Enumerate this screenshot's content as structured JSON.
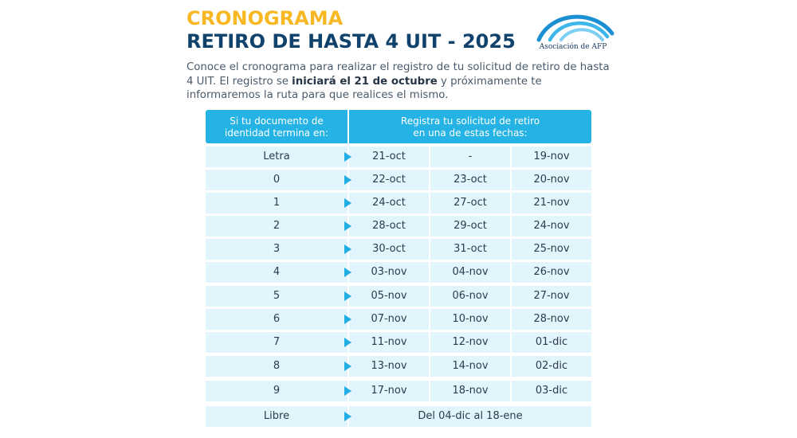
{
  "header": {
    "title_line1": "CRONOGRAMA",
    "title_line2": "RETIRO DE HASTA 4 UIT - 2025",
    "logo_text": "Asociación de AFP",
    "colors": {
      "accent": "#f7b824",
      "navy": "#11426c",
      "table_header": "#25b3e6",
      "table_cell": "#e2f4fc"
    }
  },
  "intro": {
    "part1": "Conoce el cronograma para realizar el registro de tu solicitud de retiro de hasta 4 UIT. El registro se ",
    "bold": "iniciará el 21 de octubre",
    "part2": " y próximamente te informaremos la ruta para que realices el mismo."
  },
  "table": {
    "header_left_line1": "Si tu documento de",
    "header_left_line2": "identidad termina en:",
    "header_right_line1": "Registra tu solicitud de retiro",
    "header_right_line2": "en una de estas fechas:",
    "rows": [
      {
        "digit": "Letra",
        "d1": "21-oct",
        "d2": "-",
        "d3": "19-nov"
      },
      {
        "digit": "0",
        "d1": "22-oct",
        "d2": "23-oct",
        "d3": "20-nov"
      },
      {
        "digit": "1",
        "d1": "24-oct",
        "d2": "27-oct",
        "d3": "21-nov"
      },
      {
        "digit": "2",
        "d1": "28-oct",
        "d2": "29-oct",
        "d3": "24-nov"
      },
      {
        "digit": "3",
        "d1": "30-oct",
        "d2": "31-oct",
        "d3": "25-nov"
      },
      {
        "digit": "4",
        "d1": "03-nov",
        "d2": "04-nov",
        "d3": "26-nov"
      },
      {
        "digit": "5",
        "d1": "05-nov",
        "d2": "06-nov",
        "d3": "27-nov"
      },
      {
        "digit": "6",
        "d1": "07-nov",
        "d2": "10-nov",
        "d3": "28-nov"
      },
      {
        "digit": "7",
        "d1": "11-nov",
        "d2": "12-nov",
        "d3": "01-dic"
      },
      {
        "digit": "8",
        "d1": "13-nov",
        "d2": "14-nov",
        "d3": "02-dic"
      },
      {
        "digit": "9",
        "d1": "17-nov",
        "d2": "18-nov",
        "d3": "03-dic"
      }
    ],
    "last_row": {
      "digit": "Libre",
      "range": "Del 04-dic al 18-ene"
    }
  }
}
